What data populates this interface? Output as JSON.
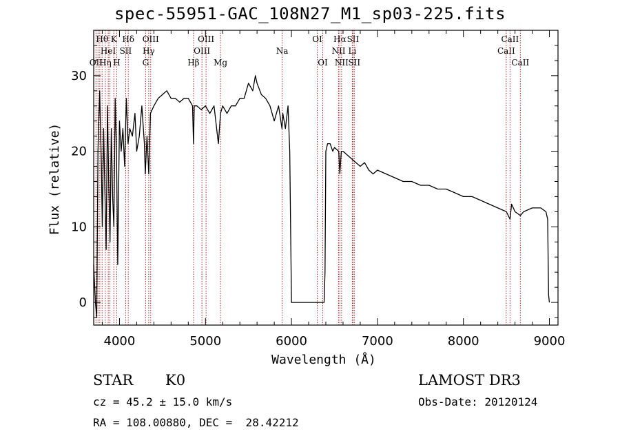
{
  "title": "spec-55951-GAC_108N27_M1_sp03-225.fits",
  "info": {
    "class": "STAR",
    "subclass": "K0",
    "velocity": "cz = 45.2 ± 15.0 km/s",
    "coords": "RA = 108.00880, DEC =  28.42212",
    "survey": "LAMOST DR3",
    "obs_date": "Obs-Date: 20120124"
  },
  "chart_data": {
    "type": "line",
    "title": "spec-55951-GAC_108N27_M1_sp03-225.fits",
    "xlabel": "Wavelength (Å)",
    "ylabel": "Flux (relative)",
    "xlim": [
      3700,
      9100
    ],
    "ylim": [
      -3,
      36
    ],
    "xticks": [
      4000,
      5000,
      6000,
      7000,
      8000,
      9000
    ],
    "xticklabels": [
      "4000",
      "5000",
      "6000",
      "7000",
      "8000",
      "9000"
    ],
    "yticks": [
      0,
      10,
      20,
      30
    ],
    "yticklabels": [
      "0",
      "10",
      "20",
      "30"
    ],
    "grid": false,
    "series": [
      {
        "name": "flux",
        "x": [
          3700,
          3720,
          3735,
          3750,
          3770,
          3790,
          3800,
          3815,
          3830,
          3845,
          3860,
          3875,
          3890,
          3905,
          3920,
          3935,
          3950,
          3965,
          3980,
          4000,
          4020,
          4040,
          4060,
          4080,
          4100,
          4120,
          4150,
          4180,
          4200,
          4230,
          4260,
          4290,
          4300,
          4320,
          4340,
          4360,
          4400,
          4450,
          4500,
          4550,
          4600,
          4650,
          4700,
          4750,
          4800,
          4850,
          4861,
          4870,
          4900,
          4950,
          5000,
          5050,
          5100,
          5150,
          5175,
          5200,
          5250,
          5300,
          5350,
          5400,
          5450,
          5500,
          5550,
          5580,
          5600,
          5650,
          5700,
          5750,
          5800,
          5850,
          5890,
          5900,
          5930,
          5960,
          5980,
          6000,
          6100,
          6200,
          6300,
          6380,
          6390,
          6400,
          6420,
          6450,
          6480,
          6500,
          6550,
          6563,
          6580,
          6600,
          6650,
          6700,
          6750,
          6800,
          6850,
          6900,
          6950,
          7000,
          7100,
          7200,
          7300,
          7400,
          7500,
          7600,
          7700,
          7800,
          7900,
          8000,
          8100,
          8200,
          8300,
          8400,
          8500,
          8542,
          8560,
          8600,
          8662,
          8700,
          8800,
          8900,
          8960,
          8980,
          8990,
          9000
        ],
        "values": [
          5,
          0,
          -2,
          20,
          28,
          18,
          10,
          23,
          15,
          7,
          26,
          16,
          8,
          23,
          14,
          10,
          27,
          20,
          5,
          24,
          20,
          23,
          18,
          27,
          21,
          23,
          22,
          25,
          20,
          22,
          26,
          21,
          17,
          22,
          17,
          25,
          26,
          27,
          27.5,
          28,
          27,
          27,
          26.5,
          27,
          27,
          26,
          21,
          26,
          26,
          25.5,
          26,
          25,
          26,
          21,
          25,
          26,
          25,
          26,
          26,
          27,
          27,
          29,
          28,
          30,
          29,
          27.5,
          27,
          26,
          24,
          26,
          23,
          25,
          23,
          26,
          20,
          0,
          0,
          0,
          0,
          0,
          4,
          20,
          21,
          21,
          20,
          20.5,
          20,
          17,
          20,
          20,
          19.5,
          19,
          18.5,
          18,
          18.5,
          17.5,
          17,
          17.5,
          17,
          16.5,
          16,
          16,
          15.5,
          15.5,
          15,
          15,
          14.5,
          14,
          14,
          13.5,
          13,
          12.5,
          12,
          11,
          13,
          12,
          11.5,
          12,
          12.5,
          12.5,
          12,
          11,
          1,
          0
        ]
      }
    ],
    "lines": [
      {
        "wl": 3727,
        "label": "OII",
        "row": 2
      },
      {
        "wl": 3750,
        "label": "",
        "row": 0
      },
      {
        "wl": 3771,
        "label": "",
        "row": 0
      },
      {
        "wl": 3798,
        "label": "Hθ",
        "row": 0
      },
      {
        "wl": 3835,
        "label": "Hη",
        "row": 2
      },
      {
        "wl": 3869,
        "label": "HeI",
        "row": 1
      },
      {
        "wl": 3889,
        "label": "",
        "row": 0
      },
      {
        "wl": 3934,
        "label": "K",
        "row": 0
      },
      {
        "wl": 3968,
        "label": "H",
        "row": 2
      },
      {
        "wl": 4072,
        "label": "SII",
        "row": 1
      },
      {
        "wl": 4102,
        "label": "Hδ",
        "row": 0
      },
      {
        "wl": 4304,
        "label": "G",
        "row": 2
      },
      {
        "wl": 4340,
        "label": "Hγ",
        "row": 1
      },
      {
        "wl": 4363,
        "label": "OIII",
        "row": 0
      },
      {
        "wl": 4861,
        "label": "Hβ",
        "row": 2
      },
      {
        "wl": 4959,
        "label": "OIII",
        "row": 1
      },
      {
        "wl": 5007,
        "label": "OIII",
        "row": 0
      },
      {
        "wl": 5175,
        "label": "Mg",
        "row": 2
      },
      {
        "wl": 5892,
        "label": "Na",
        "row": 1
      },
      {
        "wl": 6300,
        "label": "OI",
        "row": 0
      },
      {
        "wl": 6364,
        "label": "OI",
        "row": 2
      },
      {
        "wl": 6548,
        "label": "NII",
        "row": 1
      },
      {
        "wl": 6563,
        "label": "Hα",
        "row": 0
      },
      {
        "wl": 6583,
        "label": "NII",
        "row": 2
      },
      {
        "wl": 6708,
        "label": "Li",
        "row": 1
      },
      {
        "wl": 6716,
        "label": "SII",
        "row": 0
      },
      {
        "wl": 6731,
        "label": "SII",
        "row": 2
      },
      {
        "wl": 8498,
        "label": "CaII",
        "row": 1
      },
      {
        "wl": 8542,
        "label": "CaII",
        "row": 0
      },
      {
        "wl": 8662,
        "label": "CaII",
        "row": 2
      }
    ]
  }
}
